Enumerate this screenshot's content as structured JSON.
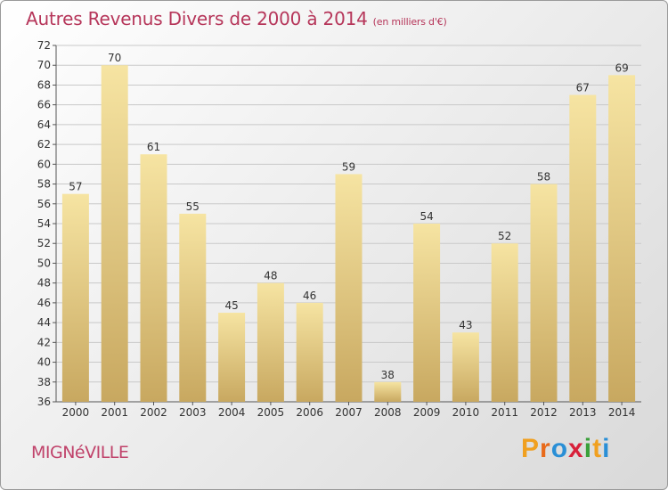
{
  "title": "Autres Revenus Divers de 2000 à 2014",
  "unit": "(en milliers d'€)",
  "commune": "MIGNéVILLE",
  "logo": {
    "letters": [
      "P",
      "r",
      "o",
      "x",
      "i",
      "t",
      "i"
    ],
    "colors": [
      "#f0a020",
      "#e86a1a",
      "#2a8fd6",
      "#d8203a",
      "#3aa03a",
      "#f0a020",
      "#2a8fd6"
    ]
  },
  "chart_data": {
    "type": "bar",
    "categories": [
      "2000",
      "2001",
      "2002",
      "2003",
      "2004",
      "2005",
      "2006",
      "2007",
      "2008",
      "2009",
      "2010",
      "2011",
      "2012",
      "2013",
      "2014"
    ],
    "values": [
      57,
      70,
      61,
      55,
      45,
      48,
      46,
      59,
      38,
      54,
      43,
      52,
      58,
      67,
      69
    ],
    "ylim": [
      36,
      72
    ],
    "yticks": [
      36,
      38,
      40,
      42,
      44,
      46,
      48,
      50,
      52,
      54,
      56,
      58,
      60,
      62,
      64,
      66,
      68,
      70,
      72
    ],
    "grid": true,
    "bar_color_top": "#f6e4a2",
    "bar_color_bottom": "#c8a860"
  }
}
